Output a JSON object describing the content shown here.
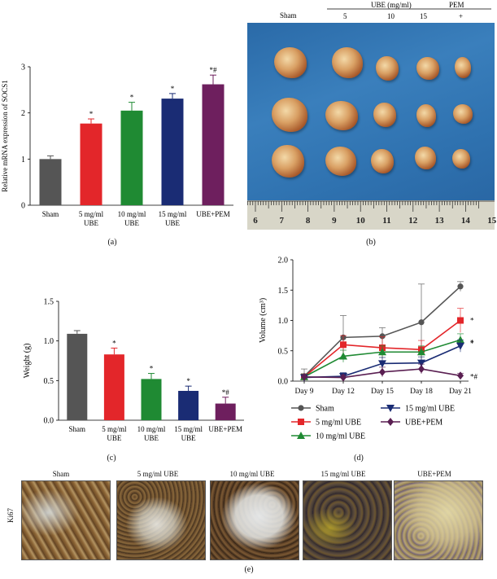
{
  "panel_labels": {
    "a": "(a)",
    "b": "(b)",
    "c": "(c)",
    "d": "(d)",
    "e": "(e)"
  },
  "photo": {
    "header_group": "UBE (mg/ml)",
    "header_pem": "PEM",
    "columns": [
      "Sham",
      "5",
      "10",
      "15",
      "+"
    ],
    "ruler_ticks": [
      "6",
      "7",
      "8",
      "9",
      "10",
      "11",
      "12",
      "13",
      "14",
      "15"
    ]
  },
  "micrographs": {
    "row_label": "Ki67",
    "titles": [
      "Sham",
      "5 mg/ml UBE",
      "10 mg/ml UBE",
      "15 mg/ml UBE",
      "UBE+PEM"
    ]
  },
  "chart_data": [
    {
      "id": "a",
      "type": "bar",
      "ylabel": "Relative mRNA expression of SOCS1",
      "xlabel": "",
      "ylim": [
        0,
        3
      ],
      "yticks": [
        0,
        1,
        2,
        3
      ],
      "categories": [
        [
          "Sham"
        ],
        [
          "5 mg/ml",
          "UBE"
        ],
        [
          "10 mg/ml",
          "UBE"
        ],
        [
          "15 mg/ml",
          "UBE"
        ],
        [
          "UBE+PEM"
        ]
      ],
      "values": [
        1.0,
        1.77,
        2.05,
        2.31,
        2.62
      ],
      "errors": [
        0.07,
        0.1,
        0.18,
        0.11,
        0.2
      ],
      "annotations": [
        "",
        "*",
        "*",
        "*",
        "*#"
      ],
      "colors": [
        "#555555",
        "#e3262a",
        "#1f8a33",
        "#1a2c74",
        "#6e1f5e"
      ]
    },
    {
      "id": "c",
      "type": "bar",
      "ylabel": "Weight (g)",
      "xlabel": "",
      "ylim": [
        0,
        1.5
      ],
      "yticks": [
        "0.0",
        "0.5",
        "1.0",
        "1.5"
      ],
      "categories": [
        [
          "Sham"
        ],
        [
          "5 mg/ml",
          "UBE"
        ],
        [
          "10 mg/ml",
          "UBE"
        ],
        [
          "15 mg/ml",
          "UBE"
        ],
        [
          "UBE+PEM"
        ]
      ],
      "values": [
        1.09,
        0.83,
        0.52,
        0.37,
        0.21
      ],
      "errors": [
        0.04,
        0.08,
        0.07,
        0.06,
        0.08
      ],
      "annotations": [
        "",
        "*",
        "*",
        "*",
        "*#"
      ],
      "colors": [
        "#555555",
        "#e3262a",
        "#1f8a33",
        "#1a2c74",
        "#6e1f5e"
      ]
    },
    {
      "id": "d",
      "type": "line",
      "ylabel": "Volume (cm³)",
      "xlabel": "",
      "ylim": [
        0,
        2.0
      ],
      "yticks": [
        "0.0",
        "0.5",
        "1.0",
        "1.5",
        "2.0"
      ],
      "x": [
        "Day 9",
        "Day 12",
        "Day 15",
        "Day 18",
        "Day 21"
      ],
      "series": [
        {
          "name": "Sham",
          "color": "#555555",
          "marker": "circle",
          "values": [
            0.08,
            0.72,
            0.74,
            0.97,
            1.56
          ],
          "errors": [
            0.12,
            0.36,
            0.14,
            0.63,
            0.08
          ]
        },
        {
          "name": "5 mg/ml UBE",
          "color": "#e3262a",
          "marker": "square",
          "values": [
            0.07,
            0.6,
            0.55,
            0.52,
            1.0
          ],
          "errors": [
            0.05,
            0.15,
            0.18,
            0.15,
            0.2
          ]
        },
        {
          "name": "10 mg/ml UBE",
          "color": "#1f8a33",
          "marker": "triangle-up",
          "values": [
            0.07,
            0.41,
            0.48,
            0.48,
            0.68
          ],
          "errors": [
            0.05,
            0.1,
            0.1,
            0.1,
            0.1
          ]
        },
        {
          "name": "15 mg/ml UBE",
          "color": "#1a2c74",
          "marker": "triangle-down",
          "values": [
            0.06,
            0.08,
            0.29,
            0.3,
            0.58
          ],
          "errors": [
            0.05,
            0.06,
            0.1,
            0.1,
            0.1
          ]
        },
        {
          "name": "UBE+PEM",
          "color": "#5a1f52",
          "marker": "diamond",
          "values": [
            0.07,
            0.06,
            0.15,
            0.2,
            0.09
          ],
          "errors": [
            0.04,
            0.04,
            0.08,
            0.08,
            0.04
          ]
        }
      ],
      "end_annotations": [
        "",
        "*",
        "*",
        "*",
        "*#"
      ],
      "legend_position": "bottom"
    }
  ]
}
